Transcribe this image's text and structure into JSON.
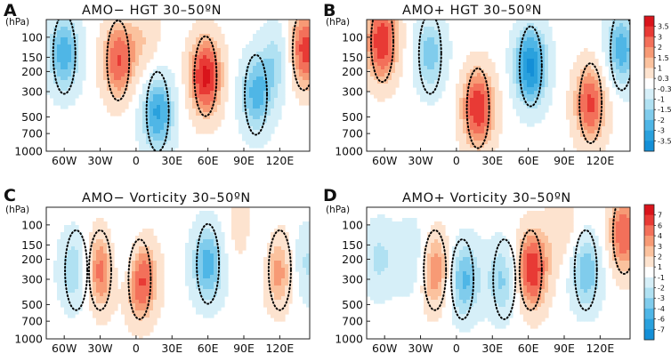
{
  "chart_data": [
    {
      "type": "heatmap",
      "panel_label": "A",
      "title": "AMO− HGT 30–50ºN",
      "ylabel": "(hPa)",
      "xlabel": "",
      "x_ticks": [
        "60W",
        "30W",
        "0",
        "30E",
        "60E",
        "90E",
        "120E"
      ],
      "x_tick_values": [
        -60,
        -30,
        0,
        30,
        60,
        90,
        120
      ],
      "xlim": [
        -75,
        145
      ],
      "y_ticks": [
        "100",
        "150",
        "200",
        "300",
        "500",
        "700",
        "1000"
      ],
      "y_tick_values": [
        100,
        150,
        200,
        300,
        500,
        700,
        1000
      ],
      "ylim": [
        1000,
        70
      ],
      "features": [
        {
          "sign": "+",
          "lon": 58,
          "p": 220,
          "magnitude": 3.8
        },
        {
          "sign": "+",
          "lon": 140,
          "p": 130,
          "magnitude": 3.6
        },
        {
          "sign": "+",
          "lon": -15,
          "p": 160,
          "magnitude": 3.0
        },
        {
          "sign": "+",
          "lon": 8,
          "p": 110,
          "magnitude": 1.2
        },
        {
          "sign": "-",
          "lon": 18,
          "p": 450,
          "magnitude": 3.2
        },
        {
          "sign": "-",
          "lon": -60,
          "p": 140,
          "magnitude": 2.8
        },
        {
          "sign": "-",
          "lon": 100,
          "p": 320,
          "magnitude": 2.6
        },
        {
          "sign": "-",
          "lon": 120,
          "p": 150,
          "magnitude": 1.8
        }
      ]
    },
    {
      "type": "heatmap",
      "panel_label": "B",
      "title": "AMO+ HGT 30–50ºN",
      "ylabel": "(hPa)",
      "xlabel": "",
      "x_ticks": [
        "60W",
        "30W",
        "0",
        "30E",
        "60E",
        "90E",
        "120E"
      ],
      "x_tick_values": [
        -60,
        -30,
        0,
        30,
        60,
        90,
        120
      ],
      "xlim": [
        -75,
        145
      ],
      "y_ticks": [
        "100",
        "150",
        "200",
        "300",
        "500",
        "700",
        "1000"
      ],
      "y_tick_values": [
        100,
        150,
        200,
        300,
        500,
        700,
        1000
      ],
      "ylim": [
        1000,
        70
      ],
      "features": [
        {
          "sign": "+",
          "lon": -62,
          "p": 110,
          "magnitude": 3.6
        },
        {
          "sign": "+",
          "lon": 18,
          "p": 420,
          "magnitude": 3.6
        },
        {
          "sign": "+",
          "lon": 112,
          "p": 380,
          "magnitude": 3.2
        },
        {
          "sign": "-",
          "lon": 62,
          "p": 180,
          "magnitude": 3.8
        },
        {
          "sign": "-",
          "lon": -22,
          "p": 140,
          "magnitude": 2.2
        },
        {
          "sign": "-",
          "lon": 138,
          "p": 130,
          "magnitude": 2.8
        }
      ]
    },
    {
      "type": "heatmap",
      "panel_label": "C",
      "title": "AMO− Vorticity 30–50ºN",
      "ylabel": "(hPa)",
      "xlabel": "",
      "x_ticks": [
        "60W",
        "30W",
        "0",
        "30E",
        "60E",
        "90E",
        "120E"
      ],
      "x_tick_values": [
        -60,
        -30,
        0,
        30,
        60,
        90,
        120
      ],
      "xlim": [
        -75,
        145
      ],
      "y_ticks": [
        "100",
        "150",
        "200",
        "300",
        "500",
        "700",
        "1000"
      ],
      "y_tick_values": [
        100,
        150,
        200,
        300,
        500,
        700,
        1000
      ],
      "ylim": [
        1000,
        70
      ],
      "features": [
        {
          "sign": "+",
          "lon": 3,
          "p": 300,
          "magnitude": 7.5
        },
        {
          "sign": "+",
          "lon": -30,
          "p": 250,
          "magnitude": 6.5
        },
        {
          "sign": "+",
          "lon": 120,
          "p": 250,
          "magnitude": 5.0
        },
        {
          "sign": "+",
          "lon": 90,
          "p": 120,
          "magnitude": 3.0
        },
        {
          "sign": "-",
          "lon": 60,
          "p": 220,
          "magnitude": 5.5
        },
        {
          "sign": "-",
          "lon": -50,
          "p": 250,
          "magnitude": 4.5
        },
        {
          "sign": "-",
          "lon": -10,
          "p": 220,
          "magnitude": 4.0
        },
        {
          "sign": "-",
          "lon": 100,
          "p": 150,
          "magnitude": 2.5
        },
        {
          "sign": "-",
          "lon": 140,
          "p": 220,
          "magnitude": 3.5
        }
      ]
    },
    {
      "type": "heatmap",
      "panel_label": "D",
      "title": "AMO+ Vorticity 30–50ºN",
      "ylabel": "(hPa)",
      "xlabel": "",
      "x_ticks": [
        "60W",
        "30W",
        "0",
        "30E",
        "60E",
        "90E",
        "120E"
      ],
      "x_tick_values": [
        -60,
        -30,
        0,
        30,
        60,
        90,
        120
      ],
      "xlim": [
        -75,
        145
      ],
      "y_ticks": [
        "100",
        "150",
        "200",
        "300",
        "500",
        "700",
        "1000"
      ],
      "y_tick_values": [
        100,
        150,
        200,
        300,
        500,
        700,
        1000
      ],
      "ylim": [
        1000,
        70
      ],
      "features": [
        {
          "sign": "+",
          "lon": 62,
          "p": 250,
          "magnitude": 7.5
        },
        {
          "sign": "+",
          "lon": -18,
          "p": 250,
          "magnitude": 6.0
        },
        {
          "sign": "+",
          "lon": 140,
          "p": 120,
          "magnitude": 6.0
        },
        {
          "sign": "+",
          "lon": 90,
          "p": 110,
          "magnitude": 2.5
        },
        {
          "sign": "-",
          "lon": 5,
          "p": 300,
          "magnitude": 5.5
        },
        {
          "sign": "-",
          "lon": 40,
          "p": 300,
          "magnitude": 4.5
        },
        {
          "sign": "-",
          "lon": 108,
          "p": 250,
          "magnitude": 5.0
        },
        {
          "sign": "-",
          "lon": -35,
          "p": 200,
          "magnitude": 3.5
        },
        {
          "sign": "-",
          "lon": -65,
          "p": 200,
          "magnitude": 3.0
        }
      ]
    }
  ],
  "colorbars": [
    {
      "name": "hgt-colorbar",
      "levels": [
        "3.5",
        "3",
        "2",
        "1.5",
        "1",
        "0.3",
        "-0.3",
        "-1",
        "-1.5",
        "-2",
        "-3",
        "-3.5"
      ],
      "level_values": [
        3.5,
        3,
        2,
        1.5,
        1,
        0.3,
        -0.3,
        -1,
        -1.5,
        -2,
        -3,
        -3.5
      ]
    },
    {
      "name": "vorticity-colorbar",
      "levels": [
        "7",
        "6",
        "4",
        "3",
        "2",
        "1",
        "-1",
        "-2",
        "-3",
        "-4",
        "-6",
        "-7"
      ],
      "level_values": [
        7,
        6,
        4,
        3,
        2,
        1,
        -1,
        -2,
        -3,
        -4,
        -6,
        -7
      ]
    }
  ],
  "colors": {
    "bins": [
      "#d9141b",
      "#e83a35",
      "#f3705a",
      "#f79a75",
      "#fbc29e",
      "#fde3cf",
      "#ffffff",
      "#d6eff8",
      "#b0e1f2",
      "#80ccec",
      "#4fb6e6",
      "#2aa1dd",
      "#148fd7"
    ],
    "contour": "#000000"
  }
}
